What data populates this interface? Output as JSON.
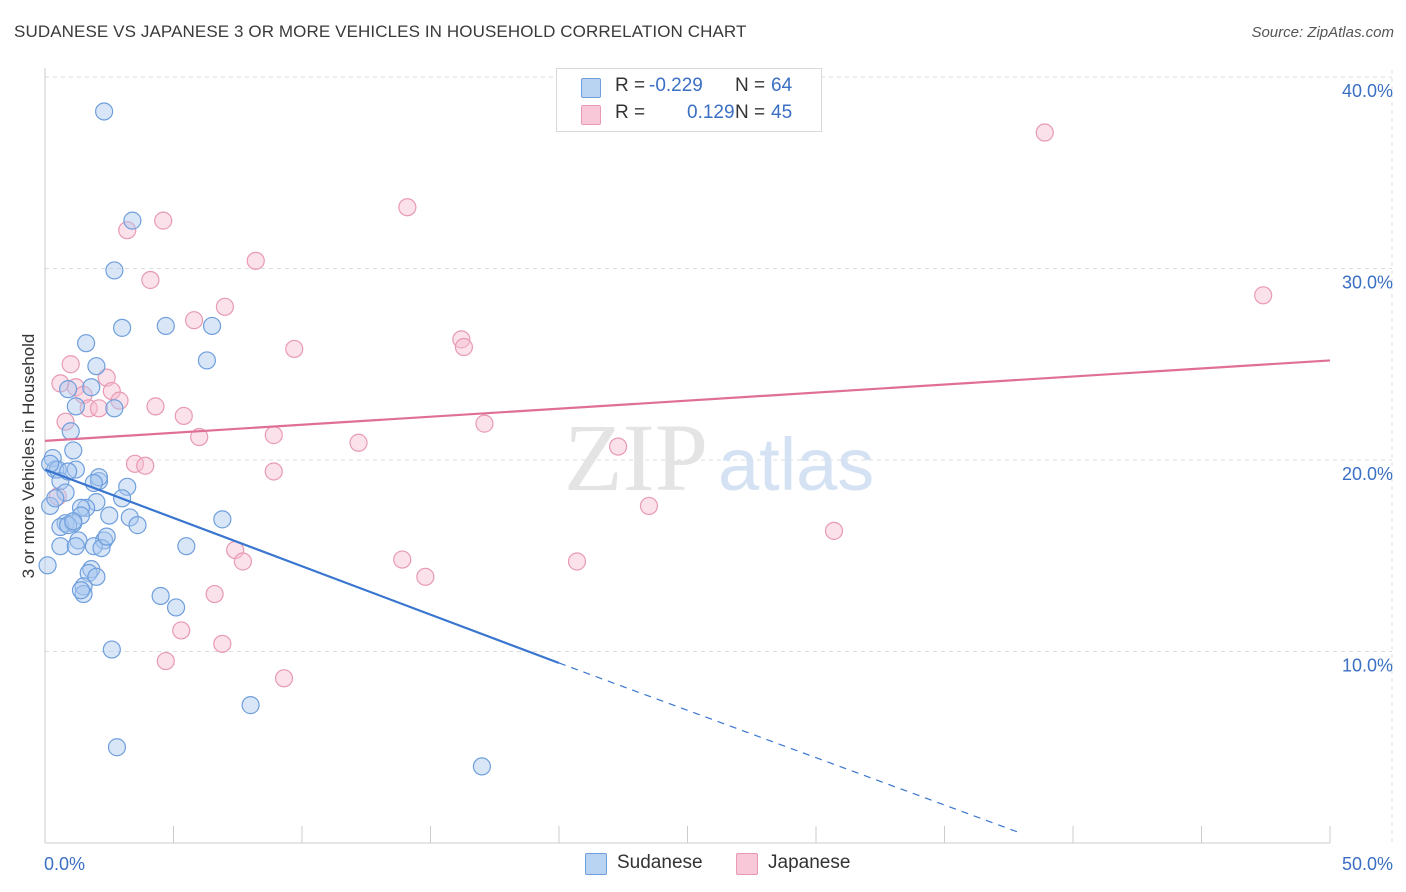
{
  "title": "SUDANESE VS JAPANESE 3 OR MORE VEHICLES IN HOUSEHOLD CORRELATION CHART",
  "source": "Source: ZipAtlas.com",
  "watermark": {
    "zip": "ZIP",
    "atlas": "atlas"
  },
  "colors": {
    "sudanese_fill": "#a9c8f0",
    "sudanese_stroke": "#6f9fdc",
    "sudanese_line": "#3a76cf",
    "japanese_fill": "#f6bdd0",
    "japanese_stroke": "#e89ab3",
    "japanese_line": "#e06f98",
    "tick_label": "#3a6fc4",
    "grid": "#dddddd"
  },
  "stats": [
    {
      "r_label": "R =",
      "r_value": "-0.229",
      "n_label": "N =",
      "n_value": "64"
    },
    {
      "r_label": "R =",
      "r_value": "0.129",
      "n_label": "N =",
      "n_value": "45"
    }
  ],
  "legend": [
    {
      "name": "Sudanese"
    },
    {
      "name": "Japanese"
    }
  ],
  "chart_data": {
    "type": "scatter",
    "ylabel": "3 or more Vehicles in Household",
    "xlim": [
      0,
      50
    ],
    "ylim": [
      0,
      42
    ],
    "x_tick_labels": [
      {
        "value": 0,
        "label": "0.0%"
      },
      {
        "value": 50,
        "label": "50.0%"
      }
    ],
    "y_tick_labels": [
      {
        "value": 10,
        "label": "10.0%"
      },
      {
        "value": 20,
        "label": "20.0%"
      },
      {
        "value": 30,
        "label": "30.0%"
      },
      {
        "value": 40,
        "label": "40.0%"
      }
    ],
    "grid": true,
    "series": [
      {
        "name": "Sudanese",
        "trend": {
          "x": [
            0,
            20
          ],
          "y": [
            19.5,
            9.4
          ],
          "dashed_to": [
            38,
            0.5
          ]
        },
        "points": [
          [
            2.3,
            38.2
          ],
          [
            3.4,
            32.5
          ],
          [
            2.7,
            29.9
          ],
          [
            4.7,
            27.0
          ],
          [
            6.5,
            27.0
          ],
          [
            3.0,
            26.9
          ],
          [
            1.6,
            26.1
          ],
          [
            6.3,
            25.2
          ],
          [
            2.0,
            24.9
          ],
          [
            1.8,
            23.8
          ],
          [
            0.9,
            23.7
          ],
          [
            2.7,
            22.7
          ],
          [
            1.2,
            22.8
          ],
          [
            1.0,
            21.5
          ],
          [
            1.1,
            20.5
          ],
          [
            0.3,
            20.1
          ],
          [
            0.4,
            19.5
          ],
          [
            0.5,
            19.5
          ],
          [
            1.2,
            19.5
          ],
          [
            0.6,
            18.9
          ],
          [
            0.8,
            18.3
          ],
          [
            2.1,
            18.9
          ],
          [
            2.1,
            19.1
          ],
          [
            3.2,
            18.6
          ],
          [
            3.0,
            18.0
          ],
          [
            0.2,
            17.6
          ],
          [
            2.0,
            17.8
          ],
          [
            1.6,
            17.5
          ],
          [
            1.4,
            17.5
          ],
          [
            2.5,
            17.1
          ],
          [
            1.4,
            17.1
          ],
          [
            3.3,
            17.0
          ],
          [
            6.9,
            16.9
          ],
          [
            0.8,
            16.7
          ],
          [
            1.1,
            16.7
          ],
          [
            0.6,
            16.5
          ],
          [
            3.6,
            16.6
          ],
          [
            0.9,
            16.6
          ],
          [
            2.3,
            15.8
          ],
          [
            1.3,
            15.8
          ],
          [
            0.6,
            15.5
          ],
          [
            1.9,
            15.5
          ],
          [
            5.5,
            15.5
          ],
          [
            2.2,
            15.4
          ],
          [
            1.2,
            15.5
          ],
          [
            1.8,
            14.3
          ],
          [
            0.1,
            14.5
          ],
          [
            1.7,
            14.1
          ],
          [
            2.0,
            13.9
          ],
          [
            1.5,
            13.4
          ],
          [
            1.5,
            13.0
          ],
          [
            1.4,
            13.2
          ],
          [
            4.5,
            12.9
          ],
          [
            5.1,
            12.3
          ],
          [
            2.6,
            10.1
          ],
          [
            8.0,
            7.2
          ],
          [
            2.8,
            5.0
          ],
          [
            17.0,
            4.0
          ],
          [
            0.2,
            19.8
          ],
          [
            1.9,
            18.8
          ],
          [
            0.4,
            18.0
          ],
          [
            0.9,
            19.4
          ],
          [
            1.1,
            16.8
          ],
          [
            2.4,
            16.0
          ]
        ]
      },
      {
        "name": "Japanese",
        "trend": {
          "x": [
            0,
            50
          ],
          "y": [
            21.0,
            25.2
          ]
        },
        "points": [
          [
            38.9,
            37.1
          ],
          [
            14.1,
            33.2
          ],
          [
            4.6,
            32.5
          ],
          [
            3.2,
            32.0
          ],
          [
            8.2,
            30.4
          ],
          [
            4.1,
            29.4
          ],
          [
            47.4,
            28.6
          ],
          [
            7.0,
            28.0
          ],
          [
            5.8,
            27.3
          ],
          [
            16.2,
            26.3
          ],
          [
            16.3,
            25.9
          ],
          [
            9.7,
            25.8
          ],
          [
            1.0,
            25.0
          ],
          [
            2.4,
            24.3
          ],
          [
            0.6,
            24.0
          ],
          [
            1.2,
            23.8
          ],
          [
            2.6,
            23.6
          ],
          [
            1.5,
            23.4
          ],
          [
            2.9,
            23.1
          ],
          [
            1.7,
            22.7
          ],
          [
            2.1,
            22.7
          ],
          [
            4.3,
            22.8
          ],
          [
            5.4,
            22.3
          ],
          [
            0.8,
            22.0
          ],
          [
            17.1,
            21.9
          ],
          [
            8.9,
            21.3
          ],
          [
            6.0,
            21.2
          ],
          [
            12.2,
            20.9
          ],
          [
            22.3,
            20.7
          ],
          [
            3.5,
            19.8
          ],
          [
            3.9,
            19.7
          ],
          [
            8.9,
            19.4
          ],
          [
            0.5,
            18.1
          ],
          [
            23.5,
            17.6
          ],
          [
            30.7,
            16.3
          ],
          [
            7.4,
            15.3
          ],
          [
            7.7,
            14.7
          ],
          [
            13.9,
            14.8
          ],
          [
            20.7,
            14.7
          ],
          [
            14.8,
            13.9
          ],
          [
            6.6,
            13.0
          ],
          [
            5.3,
            11.1
          ],
          [
            6.9,
            10.4
          ],
          [
            4.7,
            9.5
          ],
          [
            9.3,
            8.6
          ]
        ]
      }
    ]
  }
}
